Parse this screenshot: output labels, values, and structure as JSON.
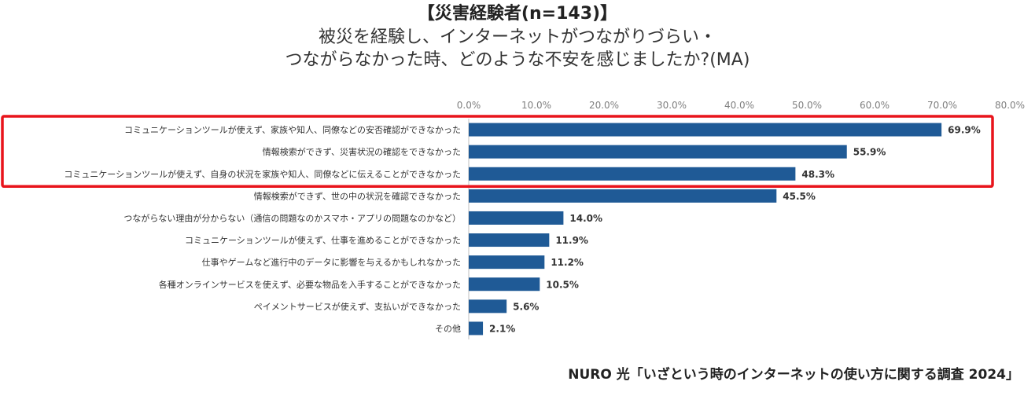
{
  "title": {
    "line1": "【災害経験者(n=143)】",
    "line2": "被災を経験し、インターネットがつながりづらい・",
    "line3": "つながらなかった時、どのような不安を感じましたか?(MA)"
  },
  "source": "NURO 光「いざという時のインターネットの使い方に関する調査 2024」",
  "colors": {
    "bar": "#1F5A96",
    "highlight_box": "#E8141B",
    "axis_text": "#7F7F7F",
    "label_text": "#333333"
  },
  "chart_data": {
    "type": "bar",
    "orientation": "horizontal",
    "title": "【災害経験者(n=143)】被災を経験し、インターネットがつながりづらい・つながらなかった時、どのような不安を感じましたか?(MA)",
    "xlabel": "",
    "ylabel": "",
    "xlim": [
      0,
      80
    ],
    "ticks": [
      "0.0%",
      "10.0%",
      "20.0%",
      "30.0%",
      "40.0%",
      "50.0%",
      "60.0%",
      "70.0%",
      "80.0%"
    ],
    "tick_values": [
      0,
      10,
      20,
      30,
      40,
      50,
      60,
      70,
      80
    ],
    "grid": false,
    "categories": [
      "コミュニケーションツールが使えず、家族や知人、同僚などの安否確認ができなかった",
      "情報検索ができず、災害状況の確認をできなかった",
      "コミュニケーションツールが使えず、自身の状況を家族や知人、同僚などに伝えることができなかった",
      "情報検索ができず、世の中の状況を確認できなかった",
      "つながらない理由が分からない（通信の問題なのかスマホ・アプリの問題なのかなど）",
      "コミュニケーションツールが使えず、仕事を進めることができなかった",
      "仕事やゲームなど進行中のデータに影響を与えるかもしれなかった",
      "各種オンラインサービスを使えず、必要な物品を入手することができなかった",
      "ペイメントサービスが使えず、支払いができなかった",
      "その他"
    ],
    "values": [
      69.9,
      55.9,
      48.3,
      45.5,
      14.0,
      11.9,
      11.2,
      10.5,
      5.6,
      2.1
    ],
    "value_labels": [
      "69.9%",
      "55.9%",
      "48.3%",
      "45.5%",
      "14.0%",
      "11.9%",
      "11.2%",
      "10.5%",
      "5.6%",
      "2.1%"
    ],
    "highlighted": [
      0,
      1,
      2
    ]
  }
}
